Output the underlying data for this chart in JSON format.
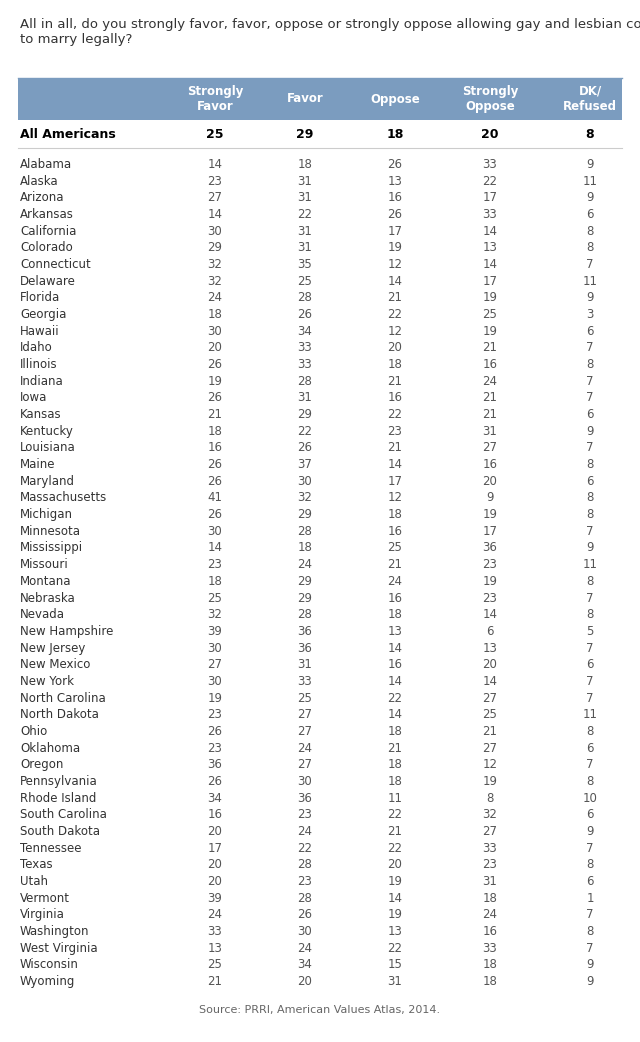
{
  "title": "All in all, do you strongly favor, favor, oppose or strongly oppose allowing gay and lesbian couples\nto marry legally?",
  "source": "Source: PRRI, American Values Atlas, 2014.",
  "columns": [
    "Strongly\nFavor",
    "Favor",
    "Oppose",
    "Strongly\nOppose",
    "DK/\nRefused"
  ],
  "header_bg": "#7b9cbf",
  "header_text": "#ffffff",
  "all_americans_row": {
    "state": "All Americans",
    "values": [
      25,
      29,
      18,
      20,
      8
    ]
  },
  "rows": [
    {
      "state": "Alabama",
      "values": [
        14,
        18,
        26,
        33,
        9
      ]
    },
    {
      "state": "Alaska",
      "values": [
        23,
        31,
        13,
        22,
        11
      ]
    },
    {
      "state": "Arizona",
      "values": [
        27,
        31,
        16,
        17,
        9
      ]
    },
    {
      "state": "Arkansas",
      "values": [
        14,
        22,
        26,
        33,
        6
      ]
    },
    {
      "state": "California",
      "values": [
        30,
        31,
        17,
        14,
        8
      ]
    },
    {
      "state": "Colorado",
      "values": [
        29,
        31,
        19,
        13,
        8
      ]
    },
    {
      "state": "Connecticut",
      "values": [
        32,
        35,
        12,
        14,
        7
      ]
    },
    {
      "state": "Delaware",
      "values": [
        32,
        25,
        14,
        17,
        11
      ]
    },
    {
      "state": "Florida",
      "values": [
        24,
        28,
        21,
        19,
        9
      ]
    },
    {
      "state": "Georgia",
      "values": [
        18,
        26,
        22,
        25,
        3
      ]
    },
    {
      "state": "Hawaii",
      "values": [
        30,
        34,
        12,
        19,
        6
      ]
    },
    {
      "state": "Idaho",
      "values": [
        20,
        33,
        20,
        21,
        7
      ]
    },
    {
      "state": "Illinois",
      "values": [
        26,
        33,
        18,
        16,
        8
      ]
    },
    {
      "state": "Indiana",
      "values": [
        19,
        28,
        21,
        24,
        7
      ]
    },
    {
      "state": "Iowa",
      "values": [
        26,
        31,
        16,
        21,
        7
      ]
    },
    {
      "state": "Kansas",
      "values": [
        21,
        29,
        22,
        21,
        6
      ]
    },
    {
      "state": "Kentucky",
      "values": [
        18,
        22,
        23,
        31,
        9
      ]
    },
    {
      "state": "Louisiana",
      "values": [
        16,
        26,
        21,
        27,
        7
      ]
    },
    {
      "state": "Maine",
      "values": [
        26,
        37,
        14,
        16,
        8
      ]
    },
    {
      "state": "Maryland",
      "values": [
        26,
        30,
        17,
        20,
        6
      ]
    },
    {
      "state": "Massachusetts",
      "values": [
        41,
        32,
        12,
        9,
        8
      ]
    },
    {
      "state": "Michigan",
      "values": [
        26,
        29,
        18,
        19,
        8
      ]
    },
    {
      "state": "Minnesota",
      "values": [
        30,
        28,
        16,
        17,
        7
      ]
    },
    {
      "state": "Mississippi",
      "values": [
        14,
        18,
        25,
        36,
        9
      ]
    },
    {
      "state": "Missouri",
      "values": [
        23,
        24,
        21,
        23,
        11
      ]
    },
    {
      "state": "Montana",
      "values": [
        18,
        29,
        24,
        19,
        8
      ]
    },
    {
      "state": "Nebraska",
      "values": [
        25,
        29,
        16,
        23,
        7
      ]
    },
    {
      "state": "Nevada",
      "values": [
        32,
        28,
        18,
        14,
        8
      ]
    },
    {
      "state": "New Hampshire",
      "values": [
        39,
        36,
        13,
        6,
        5
      ]
    },
    {
      "state": "New Jersey",
      "values": [
        30,
        36,
        14,
        13,
        7
      ]
    },
    {
      "state": "New Mexico",
      "values": [
        27,
        31,
        16,
        20,
        6
      ]
    },
    {
      "state": "New York",
      "values": [
        30,
        33,
        14,
        14,
        7
      ]
    },
    {
      "state": "North Carolina",
      "values": [
        19,
        25,
        22,
        27,
        7
      ]
    },
    {
      "state": "North Dakota",
      "values": [
        23,
        27,
        14,
        25,
        11
      ]
    },
    {
      "state": "Ohio",
      "values": [
        26,
        27,
        18,
        21,
        8
      ]
    },
    {
      "state": "Oklahoma",
      "values": [
        23,
        24,
        21,
        27,
        6
      ]
    },
    {
      "state": "Oregon",
      "values": [
        36,
        27,
        18,
        12,
        7
      ]
    },
    {
      "state": "Pennsylvania",
      "values": [
        26,
        30,
        18,
        19,
        8
      ]
    },
    {
      "state": "Rhode Island",
      "values": [
        34,
        36,
        11,
        8,
        10
      ]
    },
    {
      "state": "South Carolina",
      "values": [
        16,
        23,
        22,
        32,
        6
      ]
    },
    {
      "state": "South Dakota",
      "values": [
        20,
        24,
        21,
        27,
        9
      ]
    },
    {
      "state": "Tennessee",
      "values": [
        17,
        22,
        22,
        33,
        7
      ]
    },
    {
      "state": "Texas",
      "values": [
        20,
        28,
        20,
        23,
        8
      ]
    },
    {
      "state": "Utah",
      "values": [
        20,
        23,
        19,
        31,
        6
      ]
    },
    {
      "state": "Vermont",
      "values": [
        39,
        28,
        14,
        18,
        1
      ]
    },
    {
      "state": "Virginia",
      "values": [
        24,
        26,
        19,
        24,
        7
      ]
    },
    {
      "state": "Washington",
      "values": [
        33,
        30,
        13,
        16,
        8
      ]
    },
    {
      "state": "West Virginia",
      "values": [
        13,
        24,
        22,
        33,
        7
      ]
    },
    {
      "state": "Wisconsin",
      "values": [
        25,
        34,
        15,
        18,
        9
      ]
    },
    {
      "state": "Wyoming",
      "values": [
        21,
        20,
        31,
        18,
        9
      ]
    }
  ],
  "bg_color": "#ffffff",
  "title_fontsize": 9.5,
  "header_fontsize": 8.5,
  "data_fontsize": 8.5,
  "source_fontsize": 8.0
}
